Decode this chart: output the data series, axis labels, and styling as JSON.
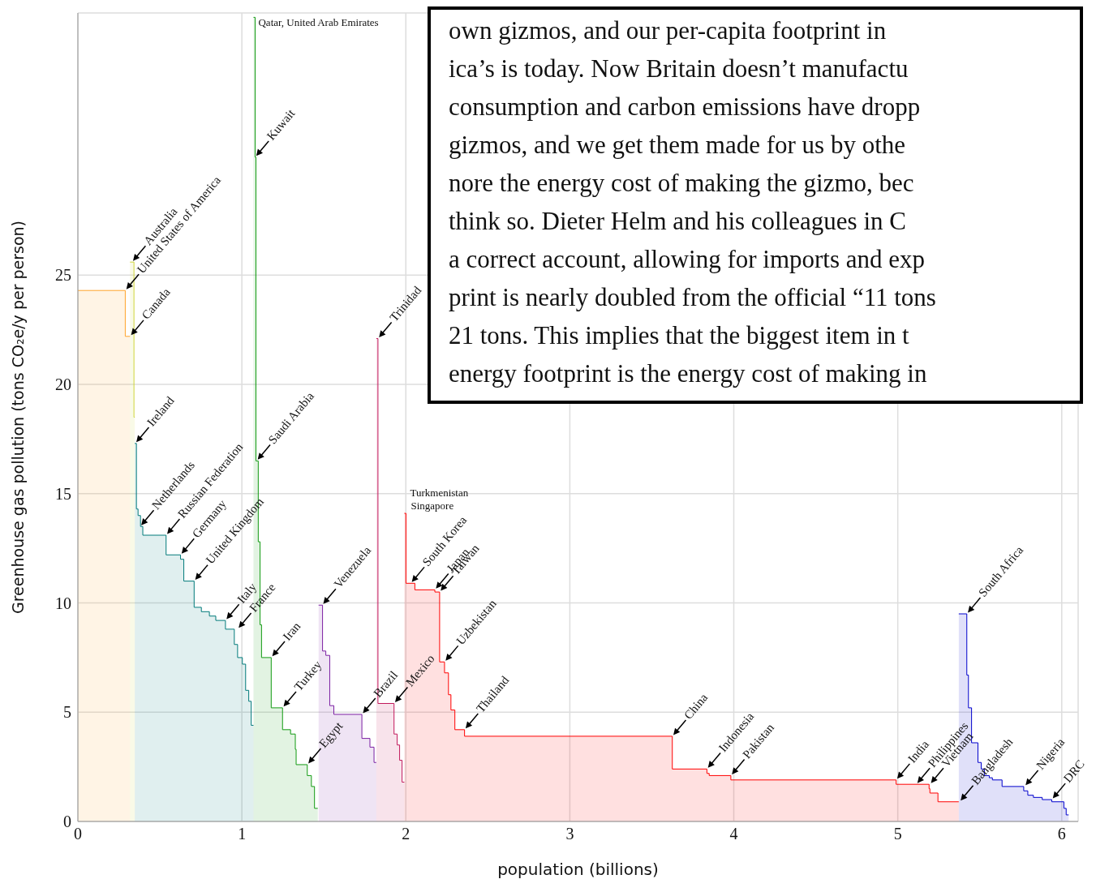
{
  "chart_data": {
    "type": "area",
    "xlabel": "population (billions)",
    "ylabel": "Greenhouse gas pollution (tons CO₂e/y per person)",
    "xlim": [
      0,
      6.1
    ],
    "xticks": [
      0,
      1,
      2,
      3,
      4,
      5,
      6
    ],
    "ylim": [
      0,
      37
    ],
    "yticks": [
      0,
      5,
      10,
      15,
      20,
      25
    ],
    "grid": true,
    "series": [
      {
        "color": "#ffa32b",
        "x": [
          0,
          0.289,
          0.289,
          0.318
        ],
        "values": [
          24.3,
          24.3,
          22.2,
          22.2
        ]
      },
      {
        "color": "#cfd43a",
        "x": [
          0.318,
          0.342,
          0.342,
          0.347
        ],
        "values": [
          25.6,
          25.6,
          18.5,
          18.5
        ]
      },
      {
        "color": "#007a7a",
        "x": [
          0.347,
          0.357,
          0.357,
          0.367,
          0.367,
          0.382,
          0.382,
          0.396,
          0.396,
          0.538,
          0.538,
          0.626,
          0.626,
          0.646,
          0.646,
          0.709,
          0.709,
          0.753,
          0.753,
          0.802,
          0.802,
          0.841,
          0.841,
          0.9,
          0.9,
          0.954,
          0.954,
          0.974,
          0.974,
          1.003,
          1.003,
          1.023,
          1.023,
          1.042,
          1.042,
          1.057,
          1.057,
          1.071
        ],
        "values": [
          17.3,
          17.3,
          14.3,
          14.3,
          14.0,
          14.0,
          13.5,
          13.5,
          13.1,
          13.1,
          12.2,
          12.2,
          12.0,
          12.0,
          11.0,
          11.0,
          9.8,
          9.8,
          9.6,
          9.6,
          9.4,
          9.4,
          9.2,
          9.2,
          8.8,
          8.8,
          8.1,
          8.1,
          7.5,
          7.5,
          7.2,
          7.2,
          6.0,
          6.0,
          5.5,
          5.5,
          4.4,
          4.4
        ]
      },
      {
        "color": "#129a12",
        "x": [
          1.071,
          1.081,
          1.081,
          1.086,
          1.086,
          1.1,
          1.1,
          1.111,
          1.111,
          1.12,
          1.12,
          1.179,
          1.179,
          1.248,
          1.248,
          1.297,
          1.297,
          1.326,
          1.326,
          1.331,
          1.331,
          1.399,
          1.399,
          1.424,
          1.424,
          1.443,
          1.443,
          1.463
        ],
        "values": [
          36.8,
          36.8,
          30.4,
          30.4,
          16.5,
          16.5,
          12.8,
          12.8,
          9.0,
          9.0,
          7.5,
          7.5,
          5.2,
          5.2,
          4.2,
          4.2,
          4.0,
          4.0,
          3.3,
          3.3,
          2.6,
          2.6,
          2.1,
          2.1,
          1.6,
          1.6,
          0.6,
          0.6
        ]
      },
      {
        "color": "#7b1fa2",
        "x": [
          1.468,
          1.492,
          1.492,
          1.512,
          1.512,
          1.536,
          1.536,
          1.561,
          1.561,
          1.732,
          1.732,
          1.781,
          1.781,
          1.806,
          1.806,
          1.82
        ],
        "values": [
          9.9,
          9.9,
          7.8,
          7.8,
          7.6,
          7.6,
          5.3,
          5.3,
          4.9,
          4.9,
          3.8,
          3.8,
          3.4,
          3.4,
          2.7,
          2.7
        ]
      },
      {
        "color": "#c2185b",
        "x": [
          1.82,
          1.83,
          1.83,
          1.928,
          1.928,
          1.947,
          1.947,
          1.962,
          1.962,
          1.977,
          1.977,
          1.991
        ],
        "values": [
          22.1,
          22.1,
          5.4,
          5.4,
          4.0,
          4.0,
          3.5,
          3.5,
          2.8,
          2.8,
          1.8,
          1.8
        ]
      },
      {
        "color": "#ff0000",
        "x": [
          1.991,
          2.001,
          2.001,
          2.055,
          2.055,
          2.177,
          2.177,
          2.206,
          2.206,
          2.236,
          2.236,
          2.26,
          2.26,
          2.275,
          2.275,
          2.299,
          2.299,
          2.358,
          2.358,
          3.625,
          3.625,
          3.836,
          3.836,
          3.85,
          3.85,
          3.982,
          3.982,
          4.99,
          4.99,
          5.191,
          5.191,
          5.196,
          5.196,
          5.245,
          5.245,
          5.372
        ],
        "values": [
          14.1,
          14.1,
          10.9,
          10.9,
          10.6,
          10.6,
          10.5,
          10.5,
          7.3,
          7.3,
          6.8,
          6.8,
          5.8,
          5.8,
          5.1,
          5.1,
          4.2,
          4.2,
          3.9,
          3.9,
          2.4,
          2.4,
          2.2,
          2.2,
          2.1,
          2.1,
          1.9,
          1.9,
          1.7,
          1.7,
          1.5,
          1.5,
          1.3,
          1.3,
          0.9,
          0.9
        ]
      },
      {
        "color": "#0000cc",
        "x": [
          5.372,
          5.421,
          5.421,
          5.431,
          5.431,
          5.45,
          5.45,
          5.489,
          5.489,
          5.509,
          5.509,
          5.528,
          5.528,
          5.558,
          5.558,
          5.577,
          5.577,
          5.636,
          5.636,
          5.768,
          5.768,
          5.793,
          5.793,
          5.827,
          5.827,
          5.881,
          5.881,
          5.939,
          5.939,
          6.013,
          6.013,
          6.027,
          6.027,
          6.042
        ],
        "values": [
          9.5,
          9.5,
          6.7,
          6.7,
          5.2,
          5.2,
          3.6,
          3.6,
          2.7,
          2.7,
          2.4,
          2.4,
          2.1,
          2.1,
          2.0,
          2.0,
          1.9,
          1.9,
          1.6,
          1.6,
          1.4,
          1.4,
          1.2,
          1.2,
          1.1,
          1.1,
          1.0,
          1.0,
          0.9,
          0.9,
          0.6,
          0.6,
          0.3,
          0.3
        ]
      }
    ],
    "annotations": [
      "own gizmos, and our per-capita footprint in",
      "ica’s is today.  Now Britain doesn’t manufactu",
      "consumption and carbon emissions have dropp",
      "gizmos, and we get them made for us by othe",
      "nore the energy cost of making the gizmo, bec",
      "think so.  Dieter Helm and his colleagues in C",
      "a correct account, allowing for imports and exp",
      "print is nearly doubled from the official “11 tons",
      "21 tons.  This implies that the biggest item in t",
      "energy footprint is the energy cost of making in",
      {
        "text": "Australia",
        "x": 0.33,
        "y": 25.6
      },
      {
        "text": "United States of America",
        "x": 0.289,
        "y": 24.3
      },
      {
        "text": "Canada",
        "x": 0.318,
        "y": 22.2
      },
      {
        "text": "Ireland",
        "x": 0.35,
        "y": 17.3
      },
      {
        "text": "Netherlands",
        "x": 0.38,
        "y": 13.5
      },
      {
        "text": "Russian Federation",
        "x": 0.538,
        "y": 13.1
      },
      {
        "text": "Germany",
        "x": 0.626,
        "y": 12.2
      },
      {
        "text": "United Kingdom",
        "x": 0.709,
        "y": 11.0
      },
      {
        "text": "Italy",
        "x": 0.9,
        "y": 9.2
      },
      {
        "text": "France",
        "x": 0.974,
        "y": 8.8
      },
      {
        "text": "Qatar, United Arab Emirates",
        "x": 1.071,
        "y": 36.8
      },
      {
        "text": "Kuwait",
        "x": 1.081,
        "y": 30.4
      },
      {
        "text": "Saudi Arabia",
        "x": 1.09,
        "y": 16.5
      },
      {
        "text": "Iran",
        "x": 1.179,
        "y": 7.5
      },
      {
        "text": "Turkey",
        "x": 1.248,
        "y": 5.2
      },
      {
        "text": "Egypt",
        "x": 1.399,
        "y": 2.6
      },
      {
        "text": "Venezuela",
        "x": 1.49,
        "y": 9.9
      },
      {
        "text": "Brazil",
        "x": 1.732,
        "y": 4.9
      },
      {
        "text": "Trinidad",
        "x": 1.83,
        "y": 22.1
      },
      {
        "text": "Mexico",
        "x": 1.928,
        "y": 5.4
      },
      {
        "text": "Turkmenistan",
        "x": 1.996,
        "y": 14.1
      },
      {
        "text": "Singapore",
        "x": 2.001,
        "y": 14.1
      },
      {
        "text": "South Korea",
        "x": 2.03,
        "y": 10.9
      },
      {
        "text": "Japan",
        "x": 2.177,
        "y": 10.6
      },
      {
        "text": "Taiwan",
        "x": 2.206,
        "y": 10.5
      },
      {
        "text": "Uzbekistan",
        "x": 2.236,
        "y": 7.3
      },
      {
        "text": "Thailand",
        "x": 2.358,
        "y": 4.2
      },
      {
        "text": "China",
        "x": 3.625,
        "y": 3.9
      },
      {
        "text": "Indonesia",
        "x": 3.836,
        "y": 2.4
      },
      {
        "text": "Pakistan",
        "x": 3.982,
        "y": 2.1
      },
      {
        "text": "India",
        "x": 4.99,
        "y": 1.9
      },
      {
        "text": "Philippines",
        "x": 5.113,
        "y": 1.7
      },
      {
        "text": "Vietnam",
        "x": 5.196,
        "y": 1.7
      },
      {
        "text": "Bangladesh",
        "x": 5.377,
        "y": 0.9
      },
      {
        "text": "South Africa",
        "x": 5.421,
        "y": 9.5
      },
      {
        "text": "Nigeria",
        "x": 5.773,
        "y": 1.6
      },
      {
        "text": "DRC",
        "x": 5.939,
        "y": 1.0
      }
    ]
  }
}
